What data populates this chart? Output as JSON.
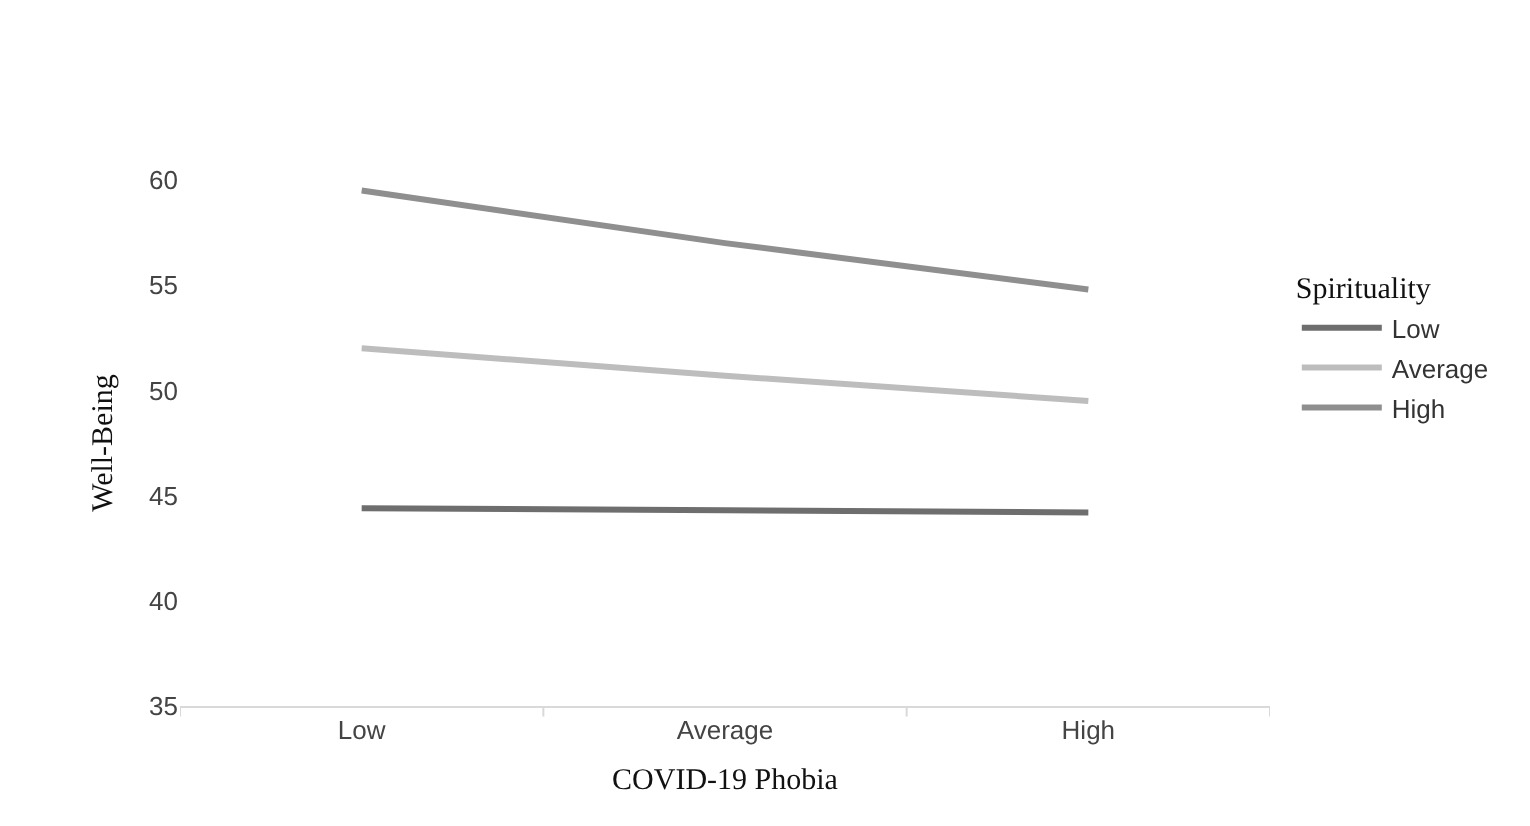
{
  "chart_data": {
    "type": "line",
    "xlabel": "COVID-19 Phobia",
    "ylabel": "Well-Being",
    "legend_title": "Spirituality",
    "categories": [
      "Low",
      "Average",
      "High"
    ],
    "series": [
      {
        "name": "Low",
        "color": "#6e6e6e",
        "values": [
          44.4,
          44.3,
          44.2
        ]
      },
      {
        "name": "Average",
        "color": "#bdbdbd",
        "values": [
          52,
          50.7,
          49.5
        ]
      },
      {
        "name": "High",
        "color": "#8f8f8f",
        "values": [
          59.5,
          57,
          54.8
        ]
      }
    ],
    "ylim": [
      35,
      60
    ],
    "yticks": [
      35,
      40,
      45,
      50,
      55,
      60
    ],
    "grid": false,
    "legend": "right",
    "marker": "none",
    "line_style": "solid"
  }
}
